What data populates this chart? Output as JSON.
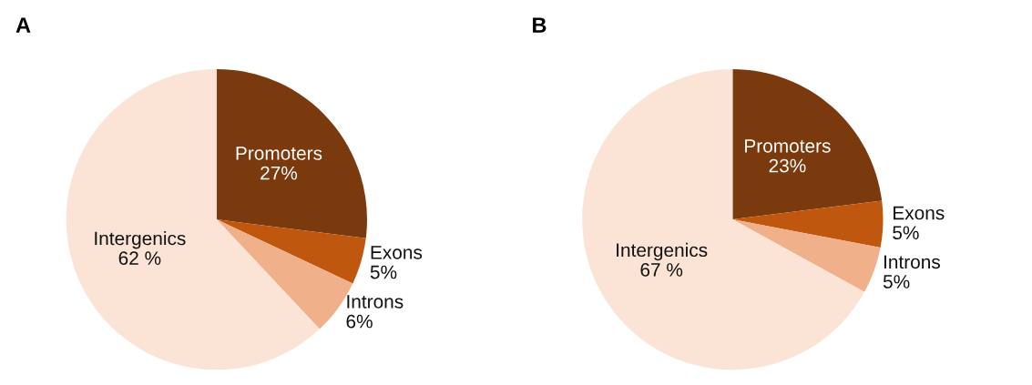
{
  "chart_data": [
    {
      "type": "pie",
      "title": "A",
      "categories": [
        "Promoters",
        "Exons",
        "Introns",
        "Intergenics"
      ],
      "values": [
        27,
        5,
        6,
        62
      ],
      "value_labels": [
        "27%",
        "5%",
        "6%",
        "62 %"
      ],
      "colors": [
        "#7b3a0e",
        "#c0570f",
        "#f0b08a",
        "#fbe3d6"
      ]
    },
    {
      "type": "pie",
      "title": "B",
      "categories": [
        "Promoters",
        "Exons",
        "Introns",
        "Intergenics"
      ],
      "values": [
        23,
        5,
        5,
        67
      ],
      "value_labels": [
        "23%",
        "5%",
        "5%",
        "67 %"
      ],
      "colors": [
        "#7b3a0e",
        "#c0570f",
        "#f0b08a",
        "#fbe3d6"
      ]
    }
  ]
}
